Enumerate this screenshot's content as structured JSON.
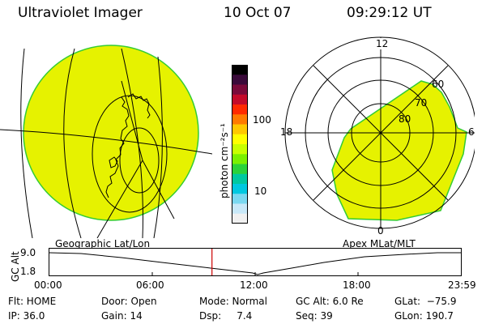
{
  "header": {
    "instrument": "Ultraviolet Imager",
    "date": "10 Oct 07",
    "time": "09:29:12 UT"
  },
  "panels": {
    "geo_label": "Geographic Lat/Lon",
    "apex_label": "Apex MLat/MLT"
  },
  "colorbar": {
    "unit_label": "photon cm⁻²s⁻¹",
    "ticks": [
      "100",
      "10"
    ],
    "colors": [
      "#000000",
      "#3a0a3a",
      "#7a0a3a",
      "#c40a2a",
      "#ff2a00",
      "#ff7a00",
      "#ffc800",
      "#ffff00",
      "#c8ff00",
      "#7af000",
      "#2ad23a",
      "#00c8a0",
      "#00c8e0",
      "#7ad8f0",
      "#c8e8f8",
      "#f0f0f0"
    ]
  },
  "polar": {
    "mlt_labels": {
      "top": "12",
      "left": "18",
      "right": "6",
      "bottom": "0"
    },
    "lat_labels": [
      "60",
      "70",
      "80"
    ]
  },
  "altitude_plot": {
    "y_axis_label": "GC Alt",
    "y_ticks": [
      "9.0",
      "1.8"
    ],
    "x_ticks": [
      "00:00",
      "06:00",
      "12:00",
      "18:00",
      "23:59"
    ],
    "current_time_fraction": 0.395
  },
  "info": {
    "flt": "Flt: HOME",
    "ip": "IP: 36.0",
    "door": "Door: Open",
    "gain": "Gain: 14",
    "mode": "Mode: Normal",
    "dsp": "Dsp:     7.4",
    "gc_alt": "GC Alt: 6.0 Re",
    "seq": "Seq: 39",
    "glat": "GLat:  −75.9",
    "glon": "GLon: 190.7"
  },
  "colors": {
    "image_fill": "#e6f200",
    "image_stroke": "#33cc33",
    "marker": "#cc0000"
  }
}
